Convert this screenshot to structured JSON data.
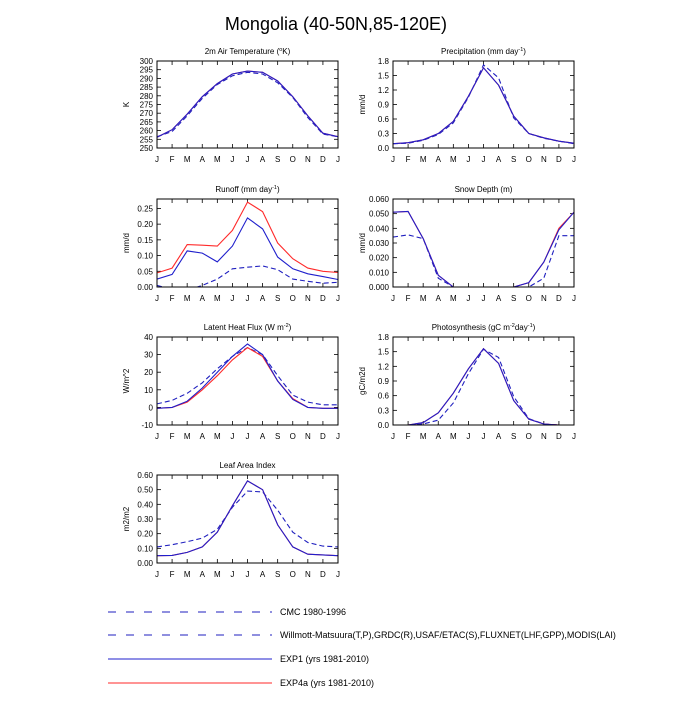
{
  "title": "Mongolia (40-50N,85-120E)",
  "months": [
    "J",
    "F",
    "M",
    "A",
    "M",
    "J",
    "J",
    "A",
    "S",
    "O",
    "N",
    "D",
    "J"
  ],
  "colors": {
    "obs": "#1f1fbf",
    "exp1": "#1f1fcc",
    "exp4a": "#ff2a2a",
    "axis": "#000000"
  },
  "chart_data": [
    {
      "type": "line",
      "title": "2m Air Temperature (",
      "title_sup": "o",
      "title_end": "K)",
      "ylabel": "K",
      "ylim": [
        250,
        300
      ],
      "yticks": [
        250,
        255,
        260,
        265,
        270,
        275,
        280,
        285,
        290,
        295,
        300
      ],
      "ytick_labels": [
        "250",
        "255",
        "260",
        "265",
        "270",
        "275",
        "280",
        "285",
        "290",
        "295",
        "300"
      ],
      "series": [
        {
          "key": "obs",
          "values": [
            256.5,
            259.5,
            268.5,
            278.5,
            286.5,
            291.5,
            293.5,
            292.5,
            287.5,
            279,
            267.5,
            258,
            256.5
          ]
        },
        {
          "key": "exp4a",
          "values": [
            256.2,
            260.5,
            269.5,
            279.5,
            287,
            292.5,
            294.2,
            293.5,
            288.5,
            279.5,
            268.5,
            258.5,
            256.5
          ]
        },
        {
          "key": "exp1",
          "values": [
            256.2,
            260.5,
            269.5,
            279.5,
            287,
            292.5,
            294.2,
            293.5,
            288.5,
            279.5,
            268.5,
            258.5,
            256.5
          ]
        }
      ]
    },
    {
      "type": "line",
      "title": "Precipitation (mm day",
      "title_sup": "-1",
      "title_end": ")",
      "ylabel": "mm/d",
      "ylim": [
        0,
        1.8
      ],
      "yticks": [
        0,
        0.3,
        0.6,
        0.9,
        1.2,
        1.5,
        1.8
      ],
      "ytick_labels": [
        "0.0",
        "0.3",
        "0.6",
        "0.9",
        "1.2",
        "1.5",
        "1.8"
      ],
      "series": [
        {
          "key": "obs",
          "values": [
            0.09,
            0.1,
            0.16,
            0.28,
            0.52,
            1.05,
            1.72,
            1.45,
            0.62,
            0.3,
            0.2,
            0.14,
            0.09
          ]
        },
        {
          "key": "exp4a",
          "values": [
            0.09,
            0.11,
            0.17,
            0.3,
            0.55,
            1.07,
            1.66,
            1.3,
            0.66,
            0.3,
            0.21,
            0.14,
            0.1
          ]
        },
        {
          "key": "exp1",
          "values": [
            0.09,
            0.11,
            0.17,
            0.3,
            0.55,
            1.07,
            1.66,
            1.3,
            0.66,
            0.3,
            0.21,
            0.14,
            0.1
          ]
        }
      ]
    },
    {
      "type": "line",
      "title": "Runoff (mm day",
      "title_sup": "-1",
      "title_end": ")",
      "ylabel": "mm/d",
      "ylim": [
        0,
        0.28
      ],
      "yticks": [
        0,
        0.05,
        0.1,
        0.15,
        0.2,
        0.25
      ],
      "ytick_labels": [
        "0.00",
        "0.05",
        "0.10",
        "0.15",
        "0.20",
        "0.25"
      ],
      "series": [
        {
          "key": "obs",
          "values": [
            0.005,
            -0.008,
            -0.01,
            0.005,
            0.025,
            0.058,
            0.063,
            0.067,
            0.055,
            0.025,
            0.018,
            0.012,
            0.015
          ]
        },
        {
          "key": "exp4a",
          "values": [
            0.045,
            0.06,
            0.135,
            0.133,
            0.13,
            0.18,
            0.27,
            0.24,
            0.14,
            0.09,
            0.06,
            0.05,
            0.046
          ]
        },
        {
          "key": "exp1",
          "values": [
            0.025,
            0.04,
            0.115,
            0.108,
            0.08,
            0.13,
            0.22,
            0.185,
            0.095,
            0.058,
            0.042,
            0.033,
            0.024
          ]
        }
      ]
    },
    {
      "type": "line",
      "title": "Snow Depth (m)",
      "title_sup": "",
      "title_end": "",
      "ylabel": "mm/d",
      "ylim": [
        0,
        0.06
      ],
      "yticks": [
        0,
        0.01,
        0.02,
        0.03,
        0.04,
        0.05,
        0.06
      ],
      "ytick_labels": [
        "0.000",
        "0.010",
        "0.020",
        "0.030",
        "0.040",
        "0.050",
        "0.060"
      ],
      "series": [
        {
          "key": "obs",
          "values": [
            0.034,
            0.0355,
            0.033,
            0.006,
            0,
            0,
            0,
            0,
            0,
            0,
            0.006,
            0.035,
            0.035
          ]
        },
        {
          "key": "exp4a",
          "values": [
            0.051,
            0.0515,
            0.033,
            0.008,
            0,
            0,
            0,
            0,
            0,
            0.003,
            0.017,
            0.04,
            0.051
          ]
        },
        {
          "key": "exp1",
          "values": [
            0.051,
            0.0515,
            0.033,
            0.008,
            0,
            0,
            0,
            0,
            0,
            0.003,
            0.017,
            0.039,
            0.051
          ]
        }
      ]
    },
    {
      "type": "line",
      "title": "Latent Heat Flux (W m",
      "title_sup": "-2",
      "title_end": ")",
      "ylabel": "W/m^2",
      "ylim": [
        -10,
        40
      ],
      "yticks": [
        -10,
        0,
        10,
        20,
        30,
        40
      ],
      "ytick_labels": [
        "-10",
        "0",
        "10",
        "20",
        "30",
        "40"
      ],
      "series": [
        {
          "key": "obs",
          "values": [
            2,
            4,
            8,
            14,
            22,
            29,
            34,
            30,
            18,
            7,
            3,
            1.5,
            1.5
          ]
        },
        {
          "key": "exp4a",
          "values": [
            -0.5,
            0,
            3,
            10,
            18,
            27,
            34,
            29,
            15,
            5,
            0,
            -0.5,
            -0.5
          ]
        },
        {
          "key": "exp1",
          "values": [
            -0.5,
            0,
            3.5,
            11,
            20,
            29,
            36,
            30,
            15,
            4.5,
            0,
            -0.5,
            -0.5
          ]
        }
      ]
    },
    {
      "type": "line",
      "title": "Photosynthesis (gC m",
      "title_sup": "-2",
      "title_end": "day",
      "title_sup2": "-1",
      "title_end2": ")",
      "ylabel": "gC/m2d",
      "ylim": [
        0,
        1.8
      ],
      "yticks": [
        0,
        0.3,
        0.6,
        0.9,
        1.2,
        1.5,
        1.8
      ],
      "ytick_labels": [
        "0.0",
        "0.3",
        "0.6",
        "0.9",
        "1.2",
        "1.5",
        "1.8"
      ],
      "series": [
        {
          "key": "obs",
          "values": [
            0,
            0,
            0.02,
            0.1,
            0.45,
            1.05,
            1.55,
            1.38,
            0.58,
            0.13,
            0.02,
            0,
            0
          ]
        },
        {
          "key": "exp4a",
          "values": [
            0,
            0,
            0.05,
            0.25,
            0.65,
            1.15,
            1.56,
            1.26,
            0.5,
            0.12,
            0.02,
            0,
            0
          ]
        },
        {
          "key": "exp1",
          "values": [
            0,
            0,
            0.05,
            0.25,
            0.65,
            1.15,
            1.56,
            1.26,
            0.5,
            0.12,
            0.02,
            0,
            0
          ]
        }
      ]
    },
    {
      "type": "line",
      "title": "Leaf Area Index",
      "title_sup": "",
      "title_end": "",
      "ylabel": "m2/m2",
      "ylim": [
        0,
        0.6
      ],
      "yticks": [
        0,
        0.1,
        0.2,
        0.3,
        0.4,
        0.5,
        0.6
      ],
      "ytick_labels": [
        "0.00",
        "0.10",
        "0.20",
        "0.30",
        "0.40",
        "0.50",
        "0.60"
      ],
      "series": [
        {
          "key": "obs",
          "values": [
            0.11,
            0.125,
            0.145,
            0.17,
            0.23,
            0.38,
            0.49,
            0.485,
            0.36,
            0.21,
            0.14,
            0.115,
            0.11
          ]
        },
        {
          "key": "exp4a",
          "values": [
            0.05,
            0.052,
            0.072,
            0.11,
            0.21,
            0.39,
            0.56,
            0.5,
            0.26,
            0.11,
            0.06,
            0.055,
            0.05
          ]
        },
        {
          "key": "exp1",
          "values": [
            0.05,
            0.052,
            0.072,
            0.11,
            0.21,
            0.39,
            0.56,
            0.5,
            0.26,
            0.11,
            0.06,
            0.055,
            0.05
          ]
        }
      ]
    }
  ],
  "legend": [
    {
      "key": "cmc",
      "label": "CMC 1980-1996",
      "style": "dashed",
      "color": "#1f1fbf"
    },
    {
      "key": "obs",
      "label": "Willmott-Matsuura(T,P),GRDC(R),USAF/ETAC(S),FLUXNET(LHF,GPP),MODIS(LAI)",
      "style": "dashed",
      "color": "#1f1fbf"
    },
    {
      "key": "exp1",
      "label": "EXP1 (yrs 1981-2010)",
      "style": "solid",
      "color": "#1f1fcc"
    },
    {
      "key": "exp4a",
      "label": "EXP4a (yrs 1981-2010)",
      "style": "solid",
      "color": "#ff2a2a"
    }
  ]
}
